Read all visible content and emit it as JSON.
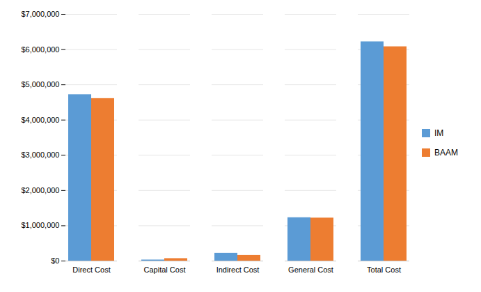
{
  "chart_data": {
    "type": "bar",
    "categories": [
      "Direct Cost",
      "Capital Cost",
      "Indirect Cost",
      "General Cost",
      "Total Cost"
    ],
    "series": [
      {
        "name": "IM",
        "color": "#5B9BD5",
        "values": [
          4720000,
          30000,
          220000,
          1230000,
          6220000
        ]
      },
      {
        "name": "BAAM",
        "color": "#ED7D31",
        "values": [
          4610000,
          70000,
          160000,
          1220000,
          6080000
        ]
      }
    ],
    "ylim": [
      0,
      7000000
    ],
    "yticks": [
      {
        "value": 0,
        "label": "$0"
      },
      {
        "value": 1000000,
        "label": "$1,000,000"
      },
      {
        "value": 2000000,
        "label": "$2,000,000"
      },
      {
        "value": 3000000,
        "label": "$3,000,000"
      },
      {
        "value": 4000000,
        "label": "$4,000,000"
      },
      {
        "value": 5000000,
        "label": "$5,000,000"
      },
      {
        "value": 6000000,
        "label": "$6,000,000"
      },
      {
        "value": 7000000,
        "label": "$7,000,000"
      }
    ],
    "grid": true,
    "legend": "right"
  }
}
